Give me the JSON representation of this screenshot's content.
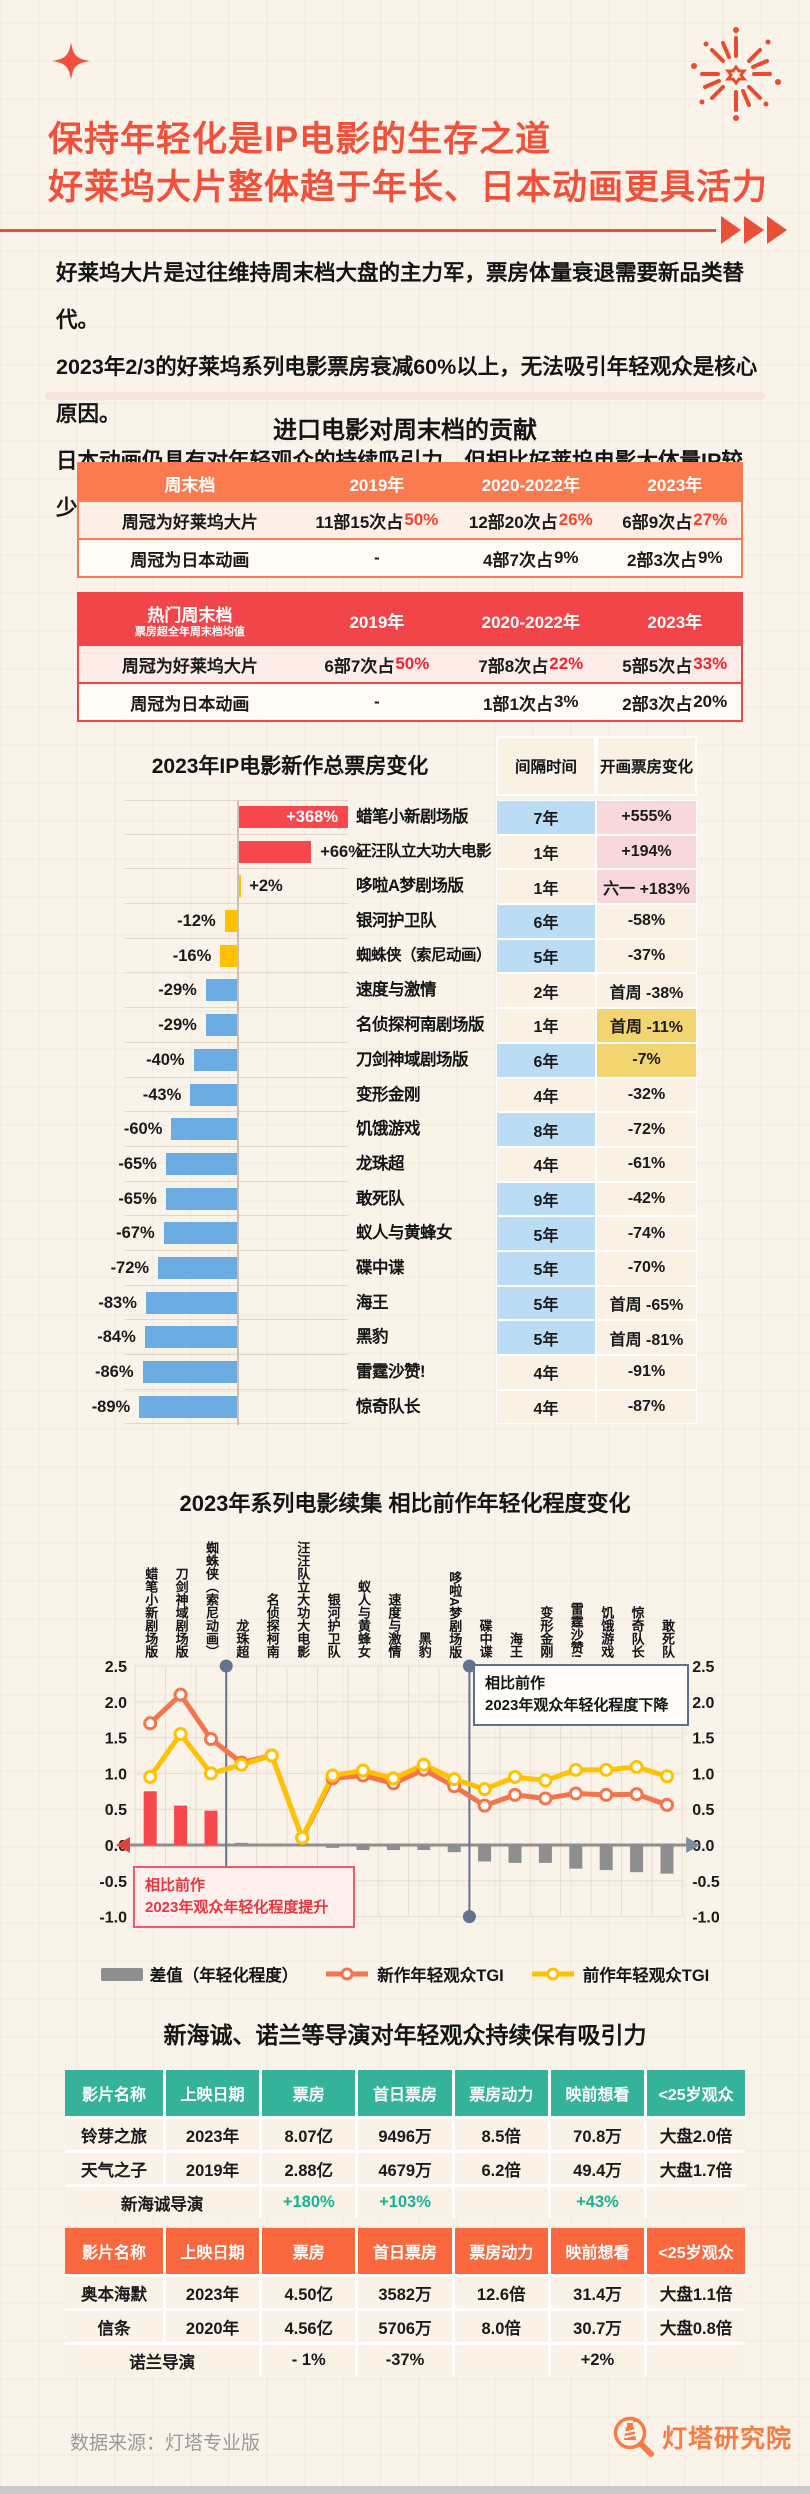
{
  "header": {
    "title_line1": "保持年轻化是IP电影的生存之道",
    "title_line2": "好莱坞大片整体趋于年长、日本动画更具活力",
    "intro_lines": [
      "好莱坞大片是过往维持周末档大盘的主力军，票房体量衰退需要新品类替代。",
      "2023年2/3的好莱坞系列电影票房衰减60%以上，无法吸引年轻观众是核心原因。",
      "日本动画仍具有对年轻观众的持续吸引力，但相比好莱坞电影大体量IP较少。"
    ]
  },
  "weekend_section": {
    "title": "进口电影对周末档的贡献",
    "tables": [
      {
        "tone": "orange",
        "header_main": "周末档",
        "header_sub": "",
        "year_headers": [
          "2019年",
          "2020-2022年",
          "2023年"
        ],
        "rows": [
          {
            "label": "周冠为好莱坞大片",
            "highlight": true,
            "cells": [
              [
                "11部15次占",
                "50%"
              ],
              [
                "12部20次占",
                "26%"
              ],
              [
                "6部9次占",
                "27%"
              ]
            ]
          },
          {
            "label": "周冠为日本动画",
            "highlight": false,
            "cells": [
              [
                "-",
                ""
              ],
              [
                "4部7次占",
                "9%"
              ],
              [
                "2部3次占",
                "9%"
              ]
            ]
          }
        ]
      },
      {
        "tone": "red",
        "header_main": "热门周末档",
        "header_sub": "票房超全年周末档均值",
        "year_headers": [
          "2019年",
          "2020-2022年",
          "2023年"
        ],
        "rows": [
          {
            "label": "周冠为好莱坞大片",
            "highlight": true,
            "cells": [
              [
                "6部7次占",
                "50%"
              ],
              [
                "7部8次占",
                "22%"
              ],
              [
                "5部5次占",
                "33%"
              ]
            ]
          },
          {
            "label": "周冠为日本动画",
            "highlight": false,
            "cells": [
              [
                "-",
                ""
              ],
              [
                "1部1次占",
                "3%"
              ],
              [
                "2部3次占",
                "20%"
              ]
            ]
          }
        ]
      }
    ]
  },
  "chart_data": [
    {
      "type": "bar",
      "orientation": "horizontal",
      "title": "2023年IP电影新作总票房变化",
      "unit": "%",
      "categories": [
        "蜡笔小新剧场版",
        "汪汪队立大功大电影",
        "哆啦A梦剧场版",
        "银河护卫队",
        "蜘蛛侠（索尼动画）",
        "速度与激情",
        "名侦探柯南剧场版",
        "刀剑神域剧场版",
        "变形金刚",
        "饥饿游戏",
        "龙珠超",
        "敢死队",
        "蚁人与黄蜂女",
        "碟中谍",
        "海王",
        "黑豹",
        "雷霆沙赞!",
        "惊奇队长"
      ],
      "values": [
        368,
        66,
        2,
        -12,
        -16,
        -29,
        -29,
        -40,
        -43,
        -60,
        -65,
        -65,
        -67,
        -72,
        -83,
        -84,
        -86,
        -89
      ],
      "value_labels": [
        "+368%",
        "+66%",
        "+2%",
        "-12%",
        "-16%",
        "-29%",
        "-29%",
        "-40%",
        "-43%",
        "-60%",
        "-65%",
        "-65%",
        "-67%",
        "-72%",
        "-83%",
        "-84%",
        "-86%",
        "-89%"
      ],
      "bar_colors": [
        "red",
        "red",
        "yellow",
        "yellow",
        "yellow",
        "blue",
        "blue",
        "blue",
        "blue",
        "blue",
        "blue",
        "blue",
        "blue",
        "blue",
        "blue",
        "blue",
        "blue",
        "blue"
      ],
      "table": {
        "headers": [
          "间隔时间",
          "开画票房变化"
        ],
        "gap_values": [
          "7年",
          "1年",
          "1年",
          "6年",
          "5年",
          "2年",
          "1年",
          "6年",
          "4年",
          "8年",
          "4年",
          "9年",
          "5年",
          "5年",
          "5年",
          "5年",
          "4年",
          "4年"
        ],
        "gap_highlight": [
          "blue",
          "",
          "",
          "blue",
          "blue",
          "",
          "",
          "blue",
          "",
          "blue",
          "",
          "blue",
          "blue",
          "blue",
          "blue",
          "blue",
          "",
          ""
        ],
        "open_values": [
          "+555%",
          "+194%",
          "六一 +183%",
          "-58%",
          "-37%",
          "首周 -38%",
          "首周 -11%",
          "-7%",
          "-32%",
          "-72%",
          "-61%",
          "-42%",
          "-74%",
          "-70%",
          "首周 -65%",
          "首周 -81%",
          "-91%",
          "-87%"
        ],
        "open_highlight": [
          "pink",
          "pink",
          "pink",
          "",
          "",
          "",
          "yellow",
          "yellow",
          "",
          "",
          "",
          "",
          "",
          "",
          "",
          "",
          "",
          ""
        ]
      }
    },
    {
      "type": "line",
      "title": "2023年系列电影续集 相比前作年轻化程度变化",
      "categories": [
        "蜡笔小新剧场版",
        "刀剑神域剧场版",
        "蜘蛛侠（索尼动画）",
        "龙珠超",
        "名侦探柯南",
        "汪汪队立大功大电影",
        "银河护卫队",
        "蚁人与黄蜂女",
        "速度与激情",
        "黑豹",
        "哆啦A梦剧场版",
        "碟中谍",
        "海王",
        "变形金刚",
        "雷霆沙赞!",
        "饥饿游戏",
        "惊奇队长",
        "敢死队"
      ],
      "series": [
        {
          "name": "差值（年轻化程度）",
          "render": "bar",
          "color_pos": "#F8484D",
          "color_neg": "#8E8E8E",
          "values": [
            0.75,
            0.55,
            0.48,
            0.03,
            0.0,
            0.0,
            -0.04,
            -0.07,
            -0.07,
            -0.07,
            -0.1,
            -0.23,
            -0.25,
            -0.25,
            -0.33,
            -0.35,
            -0.38,
            -0.4
          ]
        },
        {
          "name": "新作年轻观众TGI",
          "render": "line",
          "color": "#F4744B",
          "values": [
            1.7,
            2.1,
            1.48,
            1.15,
            1.25,
            0.1,
            0.93,
            0.97,
            0.86,
            1.05,
            0.82,
            0.55,
            0.7,
            0.65,
            0.72,
            0.7,
            0.71,
            0.56
          ]
        },
        {
          "name": "前作年轻观众TGI",
          "render": "line",
          "color": "#FFC100",
          "values": [
            0.95,
            1.55,
            1.0,
            1.12,
            1.25,
            0.1,
            0.97,
            1.04,
            0.93,
            1.12,
            0.92,
            0.78,
            0.95,
            0.9,
            1.05,
            1.05,
            1.09,
            0.96
          ]
        }
      ],
      "ylim": [
        -1.0,
        2.5
      ],
      "yticks": [
        2.5,
        2.0,
        1.5,
        1.0,
        0.5,
        0.0,
        -0.5,
        -1.0
      ],
      "grid": true,
      "dividers_after_index": [
        2,
        10
      ],
      "annotations": {
        "down_line1": "相比前作",
        "down_line2": "2023年观众年轻化程度下降",
        "up_line1": "相比前作",
        "up_line2": "2023年观众年轻化程度提升"
      },
      "legend_position": "bottom"
    }
  ],
  "directors_section": {
    "title": "新海诚、诺兰等导演对年轻观众持续保有吸引力",
    "tables": [
      {
        "tone": "green",
        "headers": [
          "影片名称",
          "上映日期",
          "票房",
          "首日票房",
          "票房动力",
          "映前想看",
          "<25岁观众"
        ],
        "rows": [
          [
            "铃芽之旅",
            "2023年",
            "8.07亿",
            "9496万",
            "8.5倍",
            "70.8万",
            "大盘2.0倍"
          ],
          [
            "天气之子",
            "2019年",
            "2.88亿",
            "4679万",
            "6.2倍",
            "49.4万",
            "大盘1.7倍"
          ]
        ],
        "summary_label": "新海诚导演",
        "summary_values": [
          "+180%",
          "+103%",
          "",
          "+43%",
          ""
        ]
      },
      {
        "tone": "orange",
        "headers": [
          "影片名称",
          "上映日期",
          "票房",
          "首日票房",
          "票房动力",
          "映前想看",
          "<25岁观众"
        ],
        "rows": [
          [
            "奥本海默",
            "2023年",
            "4.50亿",
            "3582万",
            "12.6倍",
            "31.4万",
            "大盘1.1倍"
          ],
          [
            "信条",
            "2020年",
            "4.56亿",
            "5706万",
            "8.0倍",
            "30.7万",
            "大盘0.8倍"
          ]
        ],
        "summary_label": "诺兰导演",
        "summary_values": [
          "- 1%",
          "-37%",
          "",
          "+2%",
          ""
        ]
      }
    ]
  },
  "footer": {
    "source": "数据来源：灯塔专业版",
    "logo_text": "灯塔研究院"
  },
  "colors": {
    "accent": "#F2503A",
    "table_orange": "#FB7A50",
    "table_red": "#F24549",
    "table_green": "#35B29A",
    "table_orange2": "#F9683F",
    "bar_red": "#F8484D",
    "bar_yellow": "#FFC100",
    "bar_blue": "#6BACE3",
    "cell_blue": "#BADCF5",
    "cell_pink": "#F9D8DC",
    "cell_yellow": "#F2D570",
    "cell_cream": "#FAF0E4"
  }
}
